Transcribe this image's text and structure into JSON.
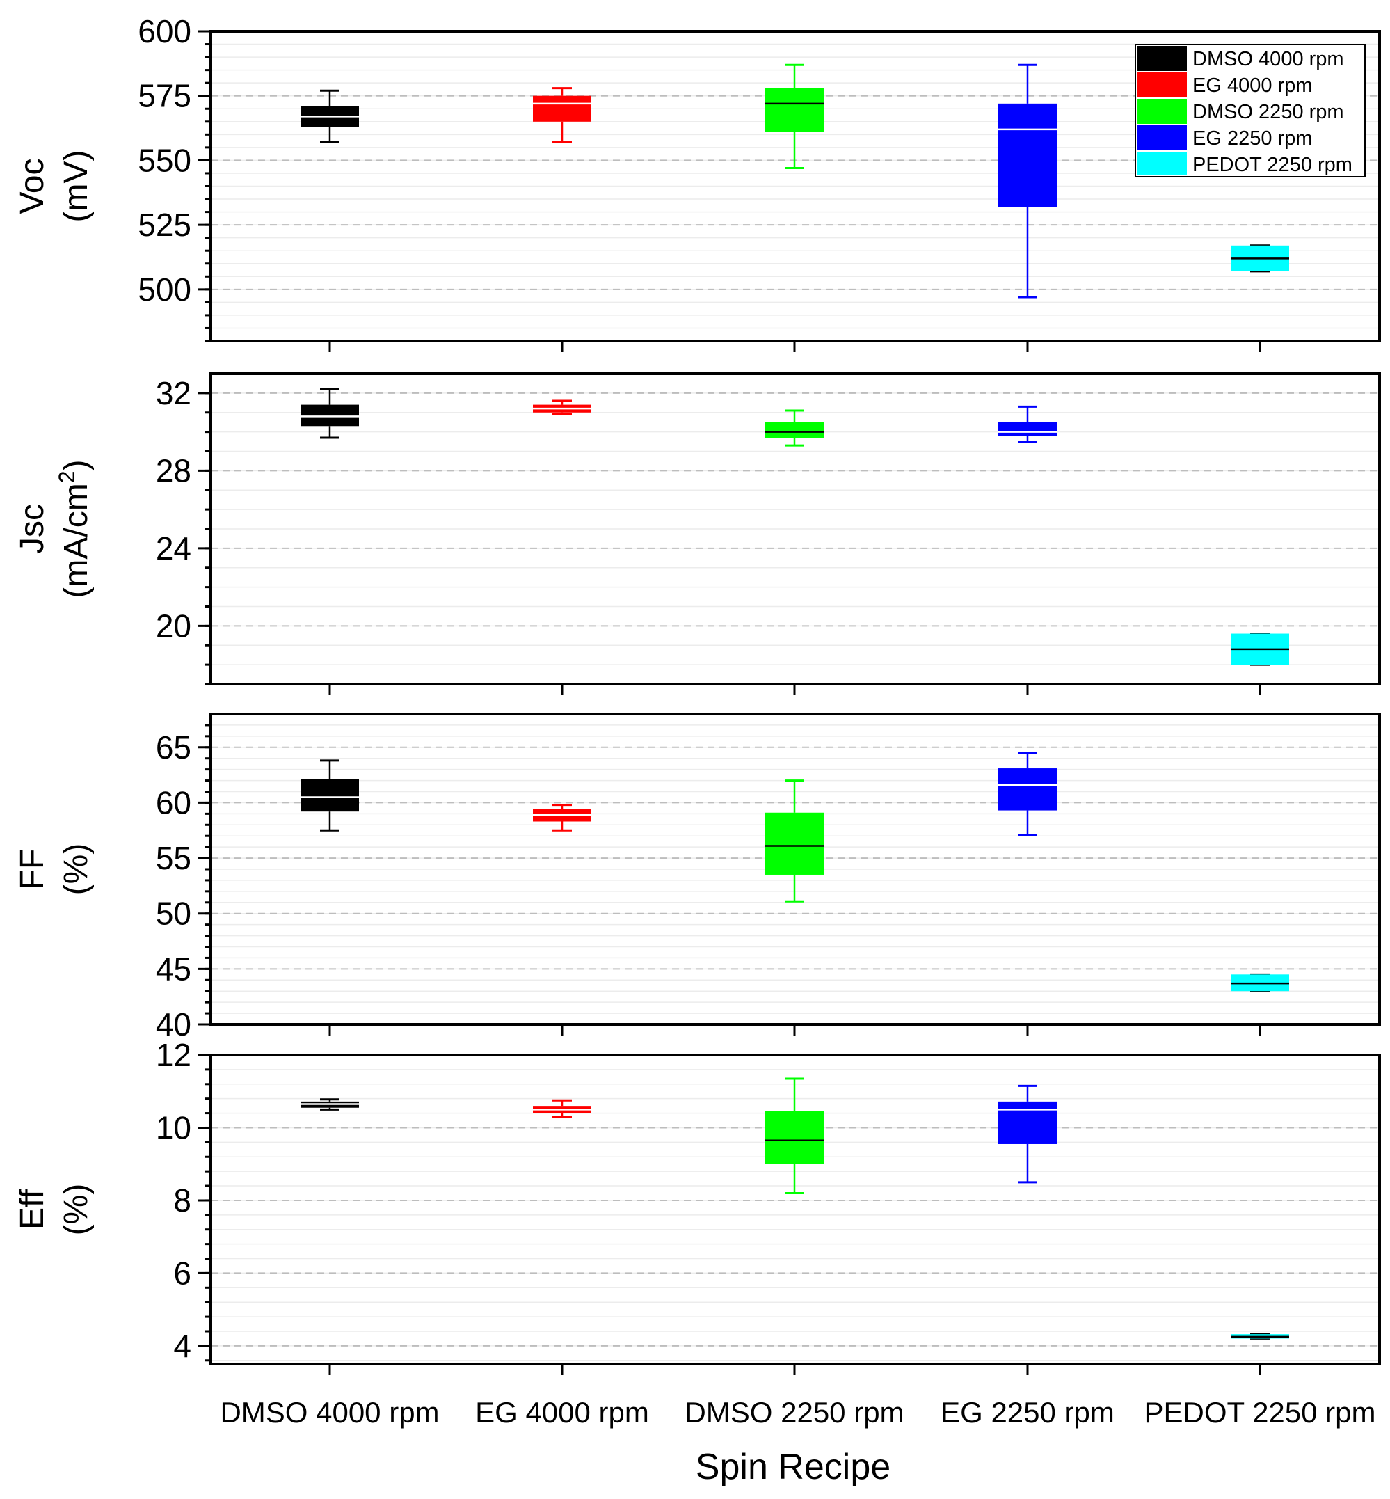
{
  "chart_data": {
    "type": "box",
    "x_title": "Spin Recipe",
    "categories": [
      "DMSO 4000 rpm",
      "EG 4000 rpm",
      "DMSO 2250 rpm",
      "EG 2250 rpm",
      "PEDOT 2250 rpm"
    ],
    "colors": [
      "#000000",
      "#ff0000",
      "#00ff00",
      "#0000ff",
      "#00ffff"
    ],
    "legend": {
      "position": "top-right",
      "entries": [
        "DMSO 4000 rpm",
        "EG 4000 rpm",
        "DMSO 2250 rpm",
        "EG 2250 rpm",
        "PEDOT 2250 rpm"
      ]
    },
    "panels": [
      {
        "name": "voc",
        "ylabel_line1": "Voc",
        "ylabel_line2": "(mV)",
        "ylim": [
          480,
          600
        ],
        "ticks": [
          500,
          525,
          550,
          575,
          600
        ],
        "minor_step": 5,
        "boxes": [
          {
            "min": 557,
            "q1": 563,
            "median": 567,
            "q3": 571,
            "max": 577
          },
          {
            "min": 557,
            "q1": 565,
            "median": 572,
            "q3": 575,
            "max": 578
          },
          {
            "min": 547,
            "q1": 561,
            "median": 572,
            "q3": 578,
            "max": 587
          },
          {
            "min": 497,
            "q1": 532,
            "median": 562,
            "q3": 572,
            "max": 587
          },
          {
            "min": 507,
            "q1": 507,
            "median": 512,
            "q3": 517,
            "max": 517
          }
        ]
      },
      {
        "name": "jsc",
        "ylabel_line1": "Jsc",
        "ylabel_line2": "(mA/cm",
        "ylabel_sup": "2",
        "ylabel_close": ")",
        "ylim": [
          17,
          33
        ],
        "ticks": [
          20,
          24,
          28,
          32
        ],
        "minor_step": 1,
        "boxes": [
          {
            "min": 29.7,
            "q1": 30.3,
            "median": 30.8,
            "q3": 31.4,
            "max": 32.2
          },
          {
            "min": 30.9,
            "q1": 31.0,
            "median": 31.2,
            "q3": 31.4,
            "max": 31.6
          },
          {
            "min": 29.3,
            "q1": 29.7,
            "median": 30.0,
            "q3": 30.5,
            "max": 31.1
          },
          {
            "min": 29.5,
            "q1": 29.8,
            "median": 30.0,
            "q3": 30.5,
            "max": 31.3
          },
          {
            "min": 18.0,
            "q1": 18.0,
            "median": 18.8,
            "q3": 19.6,
            "max": 19.6
          }
        ]
      },
      {
        "name": "ff",
        "ylabel_line1": "FF",
        "ylabel_line2": "(%)",
        "ylim": [
          40,
          68
        ],
        "ticks": [
          40,
          45,
          50,
          55,
          60,
          65
        ],
        "minor_step": 1,
        "boxes": [
          {
            "min": 57.5,
            "q1": 59.2,
            "median": 60.5,
            "q3": 62.1,
            "max": 63.8
          },
          {
            "min": 57.5,
            "q1": 58.3,
            "median": 58.9,
            "q3": 59.4,
            "max": 59.8
          },
          {
            "min": 51.1,
            "q1": 53.5,
            "median": 56.1,
            "q3": 59.1,
            "max": 62.0
          },
          {
            "min": 57.1,
            "q1": 59.3,
            "median": 61.6,
            "q3": 63.1,
            "max": 64.5
          },
          {
            "min": 43.0,
            "q1": 43.0,
            "median": 43.7,
            "q3": 44.5,
            "max": 44.5
          }
        ]
      },
      {
        "name": "eff",
        "ylabel_line1": "Eff",
        "ylabel_line2": "(%)",
        "ylim": [
          3.5,
          12
        ],
        "ticks": [
          4,
          6,
          8,
          10,
          12
        ],
        "minor_step": 0.4,
        "boxes": [
          {
            "min": 10.5,
            "q1": 10.55,
            "median": 10.65,
            "q3": 10.72,
            "max": 10.78
          },
          {
            "min": 10.3,
            "q1": 10.4,
            "median": 10.5,
            "q3": 10.6,
            "max": 10.75
          },
          {
            "min": 8.2,
            "q1": 9.0,
            "median": 9.65,
            "q3": 10.45,
            "max": 11.35
          },
          {
            "min": 8.5,
            "q1": 9.55,
            "median": 10.5,
            "q3": 10.72,
            "max": 11.15
          },
          {
            "min": 4.2,
            "q1": 4.2,
            "median": 4.25,
            "q3": 4.32,
            "max": 4.32
          }
        ]
      }
    ]
  }
}
